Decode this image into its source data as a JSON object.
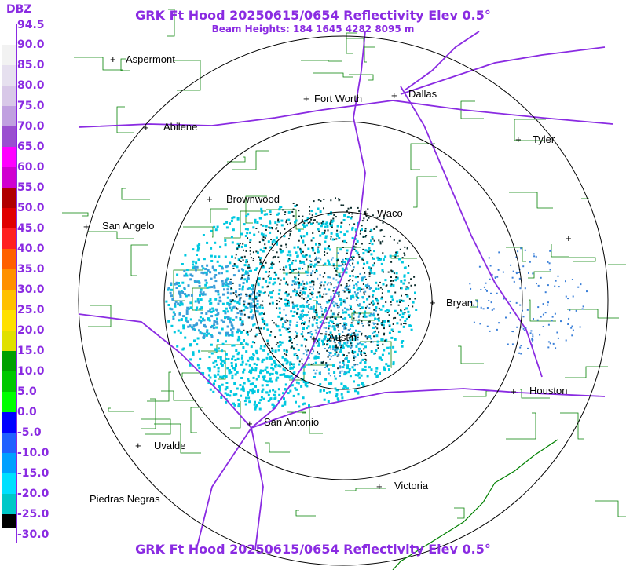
{
  "header": {
    "title": "GRK Ft Hood 20250615/0654 Reflectivity Elev 0.5°",
    "subtitle": "Beam Heights: 184 1645 4282 8095 m",
    "footer_title": "GRK Ft Hood 20250615/0654 Reflectivity Elev 0.5°"
  },
  "legend": {
    "unit": "DBZ",
    "ticks": [
      "94.5",
      "90.0",
      "85.0",
      "80.0",
      "75.0",
      "70.0",
      "65.0",
      "60.0",
      "55.0",
      "50.0",
      "45.0",
      "40.0",
      "35.0",
      "30.0",
      "25.0",
      "20.0",
      "15.0",
      "10.0",
      "5.0",
      "0.0",
      "-5.0",
      "-10.0",
      "-15.0",
      "-20.0",
      "-25.0",
      "-30.0"
    ],
    "colors": [
      "#ffffff",
      "#f2f2f2",
      "#e6e0ef",
      "#d8c8e8",
      "#c0a0e0",
      "#9a4fd0",
      "#ff00ff",
      "#d000d0",
      "#b00000",
      "#e00000",
      "#ff2020",
      "#ff6000",
      "#ff9000",
      "#ffc000",
      "#ffe000",
      "#e0e000",
      "#00a000",
      "#00c800",
      "#00ff00",
      "#0000ff",
      "#2060ff",
      "#00a0ff",
      "#00e0ff",
      "#00c8c8",
      "#000000",
      "#ffffff"
    ]
  },
  "map": {
    "cities": [
      {
        "name": "Aspermont"
      },
      {
        "name": "Fort Worth"
      },
      {
        "name": "Dallas"
      },
      {
        "name": "Abilene"
      },
      {
        "name": "Tyler"
      },
      {
        "name": "Brownwood"
      },
      {
        "name": "Waco"
      },
      {
        "name": "San Angelo"
      },
      {
        "name": "Bryan"
      },
      {
        "name": "Austin"
      },
      {
        "name": "Houston"
      },
      {
        "name": "San Antonio"
      },
      {
        "name": "Uvalde"
      },
      {
        "name": "Victoria"
      },
      {
        "name": "Piedras Negras"
      }
    ],
    "colors": {
      "county_lines": "#008000",
      "highways": "#8a2be2",
      "range_rings": "#000000",
      "echo_light": "#00c8e0",
      "echo_mid": "#3a9ed8",
      "echo_dark": "#0a2a2a"
    }
  }
}
